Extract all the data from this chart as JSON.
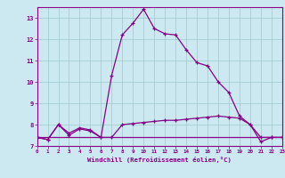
{
  "xlabel": "Windchill (Refroidissement éolien,°C)",
  "background_color": "#cce8f0",
  "line_color": "#880088",
  "hours": [
    0,
    1,
    2,
    3,
    4,
    5,
    6,
    7,
    8,
    9,
    10,
    11,
    12,
    13,
    14,
    15,
    16,
    17,
    18,
    19,
    20,
    21,
    22,
    23
  ],
  "temp_line": [
    7.4,
    7.3,
    8.0,
    7.5,
    7.8,
    7.7,
    7.4,
    10.3,
    12.2,
    12.75,
    13.4,
    12.5,
    12.25,
    12.2,
    11.5,
    10.9,
    10.75,
    10.0,
    9.5,
    8.4,
    8.0,
    7.2,
    7.4,
    7.4
  ],
  "flat_line1": [
    7.4,
    7.4,
    7.4,
    7.4,
    7.4,
    7.4,
    7.4,
    7.4,
    7.4,
    7.4,
    7.4,
    7.4,
    7.4,
    7.4,
    7.4,
    7.4,
    7.4,
    7.4,
    7.4,
    7.4,
    7.4,
    7.4,
    7.4,
    7.4
  ],
  "windchill_line": [
    7.4,
    7.3,
    8.0,
    7.6,
    7.85,
    7.75,
    7.4,
    7.4,
    8.0,
    8.05,
    8.1,
    8.15,
    8.2,
    8.2,
    8.25,
    8.3,
    8.35,
    8.4,
    8.35,
    8.3,
    8.0,
    7.4,
    7.4,
    7.4
  ],
  "ylim_min": 7,
  "ylim_max": 13.5,
  "xlim_min": 0,
  "xlim_max": 23,
  "grid_color": "#99cccc",
  "yticks": [
    7,
    8,
    9,
    10,
    11,
    12,
    13
  ],
  "xticks": [
    0,
    1,
    2,
    3,
    4,
    5,
    6,
    7,
    8,
    9,
    10,
    11,
    12,
    13,
    14,
    15,
    16,
    17,
    18,
    19,
    20,
    21,
    22,
    23
  ]
}
